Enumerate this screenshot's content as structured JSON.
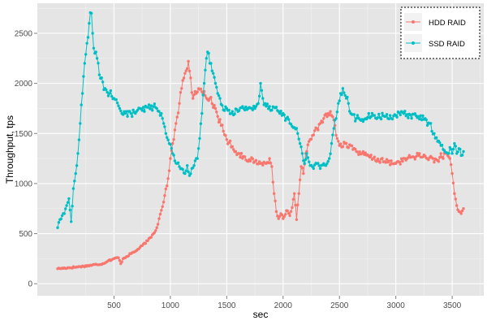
{
  "chart_data": {
    "type": "line",
    "xlabel": "sec",
    "ylabel": "Throughput, tps",
    "xlim": [
      -180,
      3780
    ],
    "ylim": [
      -120,
      2800
    ],
    "x_ticks": [
      500,
      1000,
      1500,
      2000,
      2500,
      3000,
      3500
    ],
    "y_ticks": [
      0,
      500,
      1000,
      1500,
      2000,
      2500
    ],
    "grid": true,
    "legend_position": "top-right",
    "colors": {
      "panel_bg": "#e5e5e5",
      "grid_major": "#ffffff",
      "grid_minor": "#f2f2f2"
    },
    "series": [
      {
        "name": "HDD RAID",
        "color": "#f8766d",
        "keypoints": [
          [
            0,
            150
          ],
          [
            200,
            170
          ],
          [
            400,
            200
          ],
          [
            450,
            230
          ],
          [
            500,
            250
          ],
          [
            540,
            260
          ],
          [
            560,
            200
          ],
          [
            580,
            250
          ],
          [
            650,
            300
          ],
          [
            700,
            330
          ],
          [
            750,
            380
          ],
          [
            800,
            430
          ],
          [
            850,
            500
          ],
          [
            880,
            560
          ],
          [
            900,
            650
          ],
          [
            930,
            770
          ],
          [
            950,
            880
          ],
          [
            980,
            1050
          ],
          [
            1000,
            1250
          ],
          [
            1020,
            1400
          ],
          [
            1050,
            1600
          ],
          [
            1080,
            1800
          ],
          [
            1100,
            1950
          ],
          [
            1130,
            2100
          ],
          [
            1160,
            2220
          ],
          [
            1200,
            1850
          ],
          [
            1230,
            1900
          ],
          [
            1260,
            1940
          ],
          [
            1300,
            1920
          ],
          [
            1350,
            1850
          ],
          [
            1400,
            1750
          ],
          [
            1450,
            1580
          ],
          [
            1500,
            1440
          ],
          [
            1550,
            1370
          ],
          [
            1600,
            1300
          ],
          [
            1650,
            1270
          ],
          [
            1700,
            1240
          ],
          [
            1750,
            1220
          ],
          [
            1800,
            1200
          ],
          [
            1850,
            1200
          ],
          [
            1880,
            1250
          ],
          [
            1900,
            1170
          ],
          [
            1920,
            900
          ],
          [
            1940,
            720
          ],
          [
            1960,
            650
          ],
          [
            1980,
            700
          ],
          [
            2000,
            650
          ],
          [
            2030,
            730
          ],
          [
            2060,
            680
          ],
          [
            2080,
            760
          ],
          [
            2100,
            900
          ],
          [
            2120,
            640
          ],
          [
            2140,
            900
          ],
          [
            2160,
            1170
          ],
          [
            2180,
            1100
          ],
          [
            2200,
            1300
          ],
          [
            2230,
            1420
          ],
          [
            2260,
            1480
          ],
          [
            2300,
            1550
          ],
          [
            2330,
            1600
          ],
          [
            2360,
            1650
          ],
          [
            2400,
            1700
          ],
          [
            2430,
            1680
          ],
          [
            2460,
            1580
          ],
          [
            2480,
            1450
          ],
          [
            2500,
            1380
          ],
          [
            2550,
            1400
          ],
          [
            2600,
            1380
          ],
          [
            2650,
            1320
          ],
          [
            2700,
            1300
          ],
          [
            2800,
            1250
          ],
          [
            2900,
            1220
          ],
          [
            3000,
            1200
          ],
          [
            3100,
            1250
          ],
          [
            3200,
            1280
          ],
          [
            3300,
            1260
          ],
          [
            3380,
            1220
          ],
          [
            3400,
            1300
          ],
          [
            3420,
            1250
          ],
          [
            3440,
            1300
          ],
          [
            3460,
            1280
          ],
          [
            3480,
            1250
          ],
          [
            3500,
            1100
          ],
          [
            3520,
            900
          ],
          [
            3540,
            780
          ],
          [
            3560,
            720
          ],
          [
            3580,
            700
          ],
          [
            3600,
            750
          ]
        ]
      },
      {
        "name": "SSD RAID",
        "color": "#00bfc4",
        "keypoints": [
          [
            0,
            560
          ],
          [
            20,
            640
          ],
          [
            40,
            680
          ],
          [
            60,
            700
          ],
          [
            80,
            780
          ],
          [
            100,
            850
          ],
          [
            120,
            620
          ],
          [
            140,
            950
          ],
          [
            160,
            1100
          ],
          [
            180,
            1300
          ],
          [
            200,
            1600
          ],
          [
            220,
            1900
          ],
          [
            240,
            2200
          ],
          [
            260,
            2400
          ],
          [
            280,
            2600
          ],
          [
            300,
            2700
          ],
          [
            310,
            2500
          ],
          [
            330,
            2300
          ],
          [
            350,
            2250
          ],
          [
            380,
            2050
          ],
          [
            420,
            1950
          ],
          [
            460,
            1900
          ],
          [
            500,
            1850
          ],
          [
            550,
            1750
          ],
          [
            600,
            1700
          ],
          [
            650,
            1700
          ],
          [
            700,
            1720
          ],
          [
            750,
            1730
          ],
          [
            800,
            1760
          ],
          [
            850,
            1770
          ],
          [
            880,
            1750
          ],
          [
            900,
            1720
          ],
          [
            920,
            1700
          ],
          [
            940,
            1600
          ],
          [
            960,
            1500
          ],
          [
            990,
            1400
          ],
          [
            1020,
            1300
          ],
          [
            1060,
            1200
          ],
          [
            1100,
            1150
          ],
          [
            1130,
            1100
          ],
          [
            1150,
            1180
          ],
          [
            1170,
            1080
          ],
          [
            1190,
            1150
          ],
          [
            1210,
            1180
          ],
          [
            1240,
            1250
          ],
          [
            1260,
            1450
          ],
          [
            1280,
            1700
          ],
          [
            1300,
            2000
          ],
          [
            1320,
            2250
          ],
          [
            1340,
            2300
          ],
          [
            1360,
            2200
          ],
          [
            1380,
            2100
          ],
          [
            1400,
            2000
          ],
          [
            1420,
            1900
          ],
          [
            1440,
            1850
          ],
          [
            1460,
            1780
          ],
          [
            1500,
            1750
          ],
          [
            1550,
            1720
          ],
          [
            1600,
            1720
          ],
          [
            1650,
            1750
          ],
          [
            1700,
            1760
          ],
          [
            1750,
            1750
          ],
          [
            1780,
            1800
          ],
          [
            1800,
            2000
          ],
          [
            1820,
            1850
          ],
          [
            1840,
            1800
          ],
          [
            1880,
            1770
          ],
          [
            1920,
            1760
          ],
          [
            1960,
            1720
          ],
          [
            2000,
            1700
          ],
          [
            2030,
            1650
          ],
          [
            2060,
            1600
          ],
          [
            2100,
            1560
          ],
          [
            2130,
            1500
          ],
          [
            2150,
            1400
          ],
          [
            2170,
            1300
          ],
          [
            2190,
            1200
          ],
          [
            2210,
            1300
          ],
          [
            2240,
            1180
          ],
          [
            2270,
            1150
          ],
          [
            2300,
            1200
          ],
          [
            2330,
            1150
          ],
          [
            2360,
            1200
          ],
          [
            2390,
            1200
          ],
          [
            2410,
            1250
          ],
          [
            2430,
            1400
          ],
          [
            2450,
            1550
          ],
          [
            2470,
            1650
          ],
          [
            2490,
            1800
          ],
          [
            2510,
            1900
          ],
          [
            2530,
            1950
          ],
          [
            2550,
            1880
          ],
          [
            2580,
            1800
          ],
          [
            2600,
            1700
          ],
          [
            2650,
            1650
          ],
          [
            2700,
            1640
          ],
          [
            2750,
            1660
          ],
          [
            2800,
            1680
          ],
          [
            2900,
            1670
          ],
          [
            3000,
            1680
          ],
          [
            3100,
            1690
          ],
          [
            3200,
            1670
          ],
          [
            3250,
            1640
          ],
          [
            3300,
            1600
          ],
          [
            3340,
            1500
          ],
          [
            3370,
            1420
          ],
          [
            3400,
            1380
          ],
          [
            3430,
            1330
          ],
          [
            3460,
            1300
          ],
          [
            3480,
            1360
          ],
          [
            3500,
            1300
          ],
          [
            3520,
            1400
          ],
          [
            3540,
            1300
          ],
          [
            3560,
            1350
          ],
          [
            3580,
            1280
          ],
          [
            3600,
            1320
          ]
        ]
      }
    ]
  }
}
